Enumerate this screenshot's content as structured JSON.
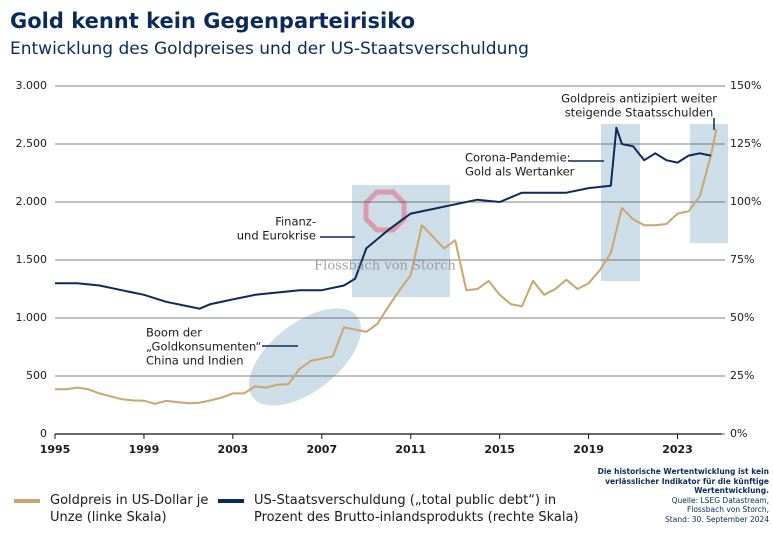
{
  "chart_data": {
    "type": "line",
    "title": "Gold kennt kein Gegenparteirisiko",
    "subtitle": "Entwicklung des Goldpreises und der US-Staatsverschuldung",
    "xlim": [
      1995,
      2025
    ],
    "xticks": [
      1995,
      1999,
      2003,
      2007,
      2011,
      2015,
      2019,
      2023
    ],
    "ylim": [
      0,
      3000
    ],
    "yticks": [
      0,
      500,
      {
        "value": 1000,
        "label": "1.000"
      },
      {
        "value": 1500,
        "label": "1.500"
      },
      {
        "value": 2000,
        "label": "2.000"
      },
      {
        "value": 2500,
        "label": "2.500"
      },
      {
        "value": 3000,
        "label": "3.000"
      }
    ],
    "y2lim": [
      0,
      150
    ],
    "y2ticks": [
      {
        "value": 0,
        "label": "0%"
      },
      {
        "value": 25,
        "label": "25%"
      },
      {
        "value": 50,
        "label": "50%"
      },
      {
        "value": 75,
        "label": "75%"
      },
      {
        "value": 100,
        "label": "100%"
      },
      {
        "value": 125,
        "label": "125%"
      },
      {
        "value": 150,
        "label": "150%"
      }
    ],
    "grid": true,
    "series": [
      {
        "name": "Goldpreis in US-Dollar je Unze (linke Skala)",
        "color": "#caa56c",
        "x": [
          1995,
          1995.5,
          1996,
          1996.5,
          1997,
          1997.5,
          1998,
          1998.5,
          1999,
          1999.5,
          2000,
          2000.5,
          2001,
          2001.5,
          2002,
          2002.5,
          2003,
          2003.5,
          2004,
          2004.5,
          2005,
          2005.5,
          2006,
          2006.5,
          2007,
          2007.5,
          2008,
          2008.5,
          2009,
          2009.5,
          2010,
          2010.5,
          2011,
          2011.5,
          2012,
          2012.5,
          2013,
          2013.5,
          2014,
          2014.5,
          2015,
          2015.5,
          2016,
          2016.5,
          2017,
          2017.5,
          2018,
          2018.5,
          2019,
          2019.5,
          2020,
          2020.5,
          2021,
          2021.5,
          2022,
          2022.5,
          2023,
          2023.5,
          2024,
          2024.5,
          2024.75
        ],
        "values": [
          385,
          385,
          400,
          385,
          350,
          325,
          300,
          290,
          287,
          260,
          285,
          275,
          265,
          270,
          290,
          315,
          350,
          350,
          410,
          400,
          425,
          430,
          560,
          630,
          650,
          670,
          920,
          900,
          880,
          950,
          1100,
          1240,
          1370,
          1800,
          1700,
          1600,
          1670,
          1240,
          1250,
          1320,
          1200,
          1120,
          1100,
          1320,
          1200,
          1250,
          1330,
          1250,
          1300,
          1410,
          1560,
          1950,
          1850,
          1800,
          1800,
          1810,
          1900,
          1920,
          2050,
          2400,
          2630
        ]
      },
      {
        "name": "US-Staatsverschuldung („total public debt“) in Prozent des Brutto-inlandsprodukts (rechte Skala)",
        "color": "#0b2a5b",
        "axis": "y2",
        "x": [
          1995,
          1996,
          1997,
          1998,
          1999,
          2000,
          2001,
          2001.5,
          2002,
          2003,
          2004,
          2005,
          2006,
          2007,
          2008,
          2008.5,
          2009,
          2010,
          2011,
          2012,
          2013,
          2014,
          2015,
          2016,
          2017,
          2018,
          2019,
          2020,
          2020.25,
          2020.5,
          2021,
          2021.5,
          2022,
          2022.5,
          2023,
          2023.5,
          2024,
          2024.5
        ],
        "values": [
          65,
          65,
          64,
          62,
          60,
          57,
          55,
          54,
          56,
          58,
          60,
          61,
          62,
          62,
          64,
          67,
          80,
          88,
          95,
          97,
          99,
          101,
          100,
          104,
          104,
          104,
          106,
          107,
          132,
          125,
          124,
          118,
          121,
          118,
          117,
          120,
          121,
          120
        ]
      }
    ],
    "annotations": [
      {
        "lines": [
          "Boom der",
          "„Goldkonsumenten“",
          "China und Indien"
        ]
      },
      {
        "lines": [
          "Finanz-",
          "und Eurokrise"
        ]
      },
      {
        "lines": [
          "Corona-Pandemie:",
          "Gold als Wertanker"
        ]
      },
      {
        "lines": [
          "Goldpreis antizipiert weiter",
          "steigende Staatsschulden"
        ]
      }
    ],
    "watermark": "Flossbach von Storch",
    "note": [
      "Die historische Wertentwicklung ist kein",
      "verlässlicher Indikator für die künftige",
      "Wertentwicklung.",
      "Quelle: LSEG Datastream,",
      "Flossbach von Storch,",
      "Stand: 30. September 2024"
    ]
  }
}
